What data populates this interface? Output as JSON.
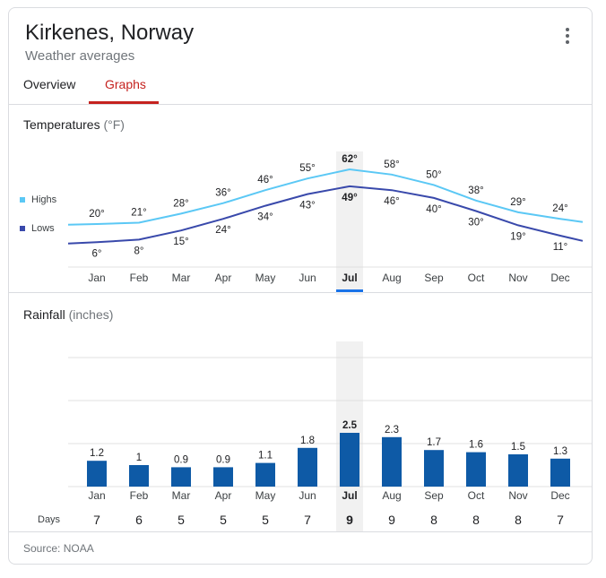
{
  "header": {
    "title": "Kirkenes, Norway",
    "subtitle": "Weather averages",
    "menu_icon": "more-vert-icon"
  },
  "tabs": [
    {
      "label": "Overview",
      "selected": false
    },
    {
      "label": "Graphs",
      "selected": true
    }
  ],
  "colors": {
    "highs": "#5bc8f5",
    "lows": "#3949ab",
    "bars": "#0e5aa6",
    "selected_band": "#f1f1f1",
    "selected_marker": "#1a73e8",
    "active_tab": "#c5221f"
  },
  "temperature_section": {
    "label": "Temperatures",
    "unit": "(°F)"
  },
  "rainfall_section": {
    "label": "Rainfall",
    "unit": "(inches)"
  },
  "legend": {
    "highs": "Highs",
    "lows": "Lows"
  },
  "days_label": "Days",
  "source": "Source: NOAA",
  "chart_data": [
    {
      "type": "line",
      "title": "Temperatures (°F)",
      "categories": [
        "Jan",
        "Feb",
        "Mar",
        "Apr",
        "May",
        "Jun",
        "Jul",
        "Aug",
        "Sep",
        "Oct",
        "Nov",
        "Dec"
      ],
      "selected": "Jul",
      "series": [
        {
          "name": "Highs",
          "values": [
            20,
            21,
            28,
            36,
            46,
            55,
            62,
            58,
            50,
            38,
            29,
            24
          ],
          "labels": [
            "20°",
            "21°",
            "28°",
            "36°",
            "46°",
            "55°",
            "62°",
            "58°",
            "50°",
            "38°",
            "29°",
            "24°"
          ]
        },
        {
          "name": "Lows",
          "values": [
            6,
            8,
            15,
            24,
            34,
            43,
            49,
            46,
            40,
            30,
            19,
            11
          ],
          "labels": [
            "6°",
            "8°",
            "15°",
            "24°",
            "34°",
            "43°",
            "49°",
            "46°",
            "40°",
            "30°",
            "19°",
            "11°"
          ]
        }
      ],
      "legend_position": "left",
      "grid": false
    },
    {
      "type": "bar",
      "title": "Rainfall (inches)",
      "categories": [
        "Jan",
        "Feb",
        "Mar",
        "Apr",
        "May",
        "Jun",
        "Jul",
        "Aug",
        "Sep",
        "Oct",
        "Nov",
        "Dec"
      ],
      "selected": "Jul",
      "values": [
        1.2,
        1,
        0.9,
        0.9,
        1.1,
        1.8,
        2.5,
        2.3,
        1.7,
        1.6,
        1.5,
        1.3
      ],
      "labels": [
        "1.2",
        "1",
        "0.9",
        "0.9",
        "1.1",
        "1.8",
        "2.5",
        "2.3",
        "1.7",
        "1.6",
        "1.5",
        "1.3"
      ],
      "ylim": [
        0,
        6
      ],
      "grid": true
    },
    {
      "type": "table",
      "title": "Days",
      "categories": [
        "Jan",
        "Feb",
        "Mar",
        "Apr",
        "May",
        "Jun",
        "Jul",
        "Aug",
        "Sep",
        "Oct",
        "Nov",
        "Dec"
      ],
      "values": [
        7,
        6,
        5,
        5,
        5,
        7,
        9,
        9,
        8,
        8,
        8,
        7
      ]
    }
  ]
}
